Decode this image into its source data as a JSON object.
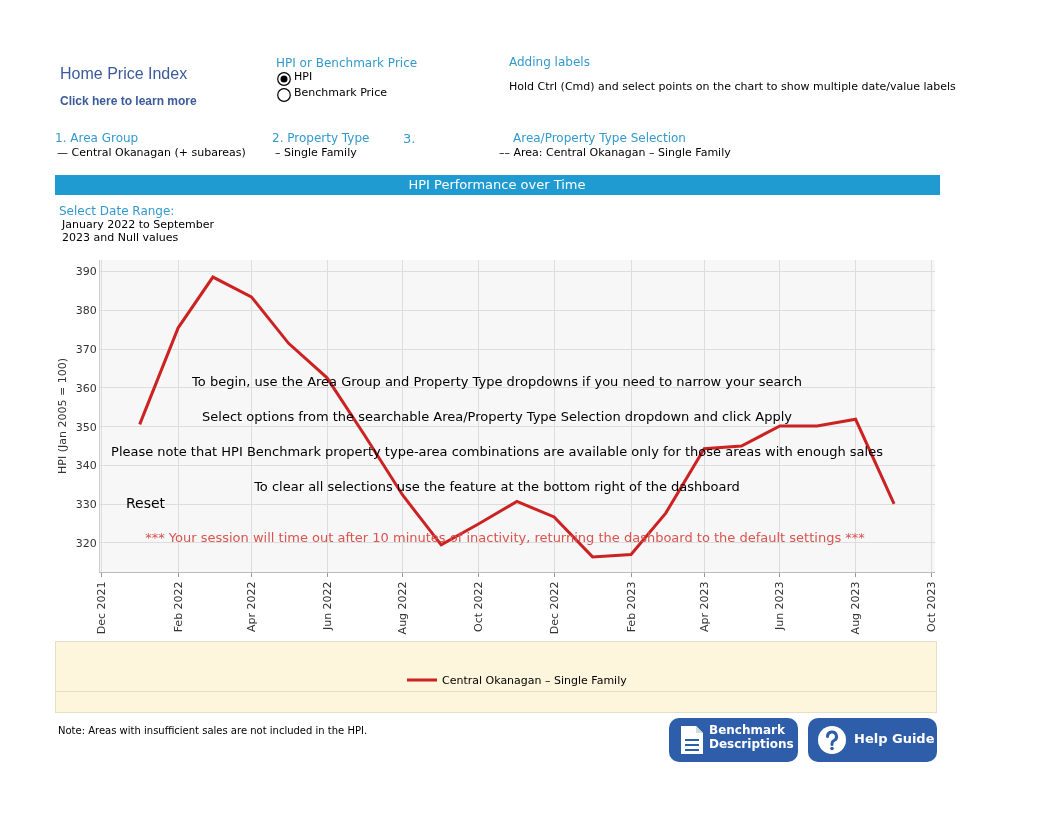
{
  "chart_data": {
    "type": "line",
    "title": "HPI Performance over Time",
    "ylabel": "HPI (Jan 2005 = 100)",
    "legend": "bottom",
    "grid": true,
    "marker": "none",
    "line_style": "solid",
    "x": [
      "2022-01",
      "2022-02",
      "2022-03",
      "2022-04",
      "2022-05",
      "2022-06",
      "2022-07",
      "2022-08",
      "2022-09",
      "2022-10",
      "2022-11",
      "2022-12",
      "2023-01",
      "2023-02",
      "2023-03",
      "2023-04",
      "2023-05",
      "2023-06",
      "2023-07",
      "2023-08",
      "2023-09"
    ],
    "series": [
      {
        "name": "Central Okanagan – Single Family",
        "color": "#cc2222",
        "values": [
          350.6,
          375.5,
          388.6,
          383.5,
          371.5,
          362.6,
          347.9,
          332.3,
          319.5,
          324.9,
          330.7,
          326.7,
          316.4,
          317.0,
          327.7,
          344.3,
          345.0,
          350.2,
          350.2,
          351.9,
          330.1
        ]
      }
    ],
    "ylim": [
      312.5,
      393
    ],
    "yticks": [
      320,
      330,
      340,
      350,
      360,
      370,
      380,
      390
    ],
    "xlim": [
      "2021-11-30",
      "2023-10-04"
    ],
    "xticks": [
      {
        "value": "2021-12-01",
        "label": "Dec 2021"
      },
      {
        "value": "2022-02-01",
        "label": "Feb 2022"
      },
      {
        "value": "2022-04-01",
        "label": "Apr 2022"
      },
      {
        "value": "2022-06-01",
        "label": "Jun 2022"
      },
      {
        "value": "2022-08-01",
        "label": "Aug 2022"
      },
      {
        "value": "2022-10-01",
        "label": "Oct 2022"
      },
      {
        "value": "2022-12-01",
        "label": "Dec 2022"
      },
      {
        "value": "2023-02-01",
        "label": "Feb 2023"
      },
      {
        "value": "2023-04-01",
        "label": "Apr 2023"
      },
      {
        "value": "2023-06-01",
        "label": "Jun 2023"
      },
      {
        "value": "2023-08-01",
        "label": "Aug 2023"
      },
      {
        "value": "2023-10-01",
        "label": "Oct 2023"
      }
    ],
    "annotations": [
      "Home Price Index",
      "Click here to learn more",
      "HPI or Benchmark Price",
      "HPI",
      "Benchmark Price",
      "Adding labels",
      "Hold Ctrl (Cmd) and select points on the chart to show multiple date/value labels",
      "1. Area Group",
      "— Central Okanagan (+ subareas)",
      "2. Property Type",
      "– Single Family",
      "3.",
      "Area/Property Type Selection",
      "–– Area: Central Okanagan – Single Family",
      "Select Date Range:",
      "January 2022 to September 2023 and Null values",
      "To begin, use the Area Group and Property Type dropdowns if you need to narrow your search",
      "Select options from the searchable Area/Property Type Selection dropdown and click Apply",
      "Please note that HPI Benchmark property type-area combinations are available only for those areas with enough sales",
      "To clear all selections use the   feature at the bottom right of the dashboard",
      "Reset",
      "*** Your session will time out after 10 minutes of inactivity, returning the dashboard to the default settings ***",
      "Note: Areas with insufficient sales are not included in the HPI.",
      "Benchmark Descriptions",
      "Help Guide"
    ]
  }
}
